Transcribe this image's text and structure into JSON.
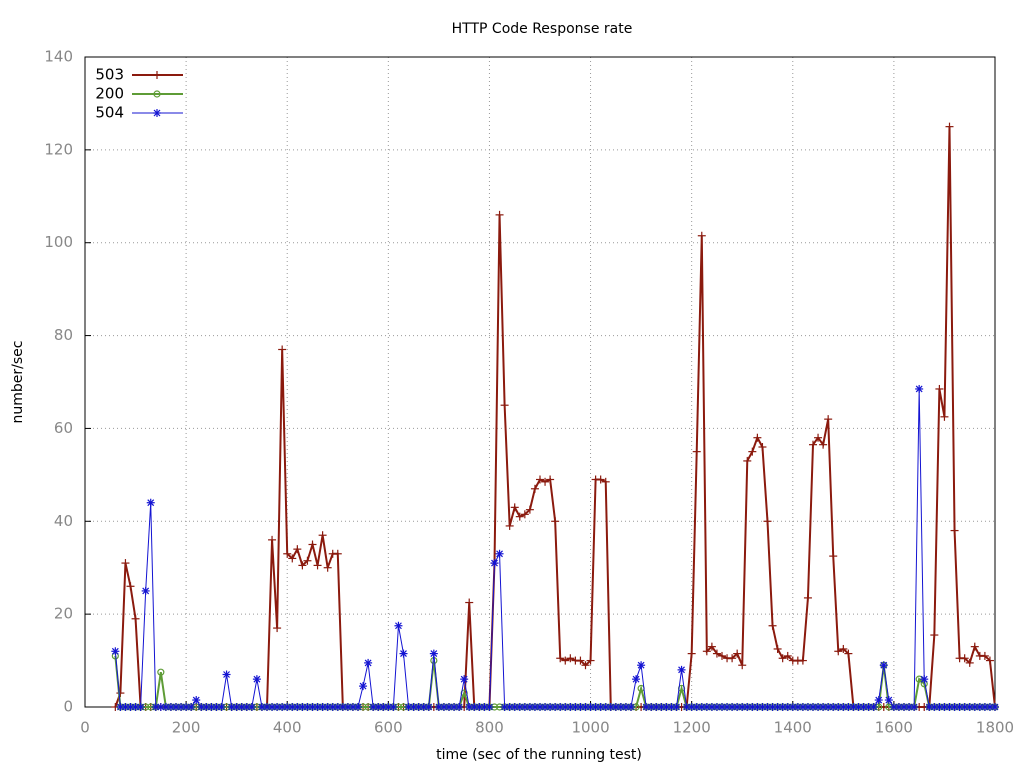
{
  "chart_data": {
    "type": "line",
    "title": "HTTP Code Response rate",
    "x_label": "time (sec of the running test)",
    "y_label": "number/sec",
    "xlim": [
      0,
      1800
    ],
    "xticks": [
      0,
      200,
      400,
      600,
      800,
      1000,
      1200,
      1400,
      1600,
      1800
    ],
    "ylim": [
      0,
      140
    ],
    "yticks": [
      0,
      20,
      40,
      60,
      80,
      100,
      120,
      140
    ],
    "grid": true,
    "legend": "top-left",
    "x": [
      60,
      70,
      80,
      90,
      100,
      110,
      120,
      130,
      140,
      150,
      160,
      170,
      180,
      190,
      200,
      210,
      220,
      230,
      240,
      250,
      260,
      270,
      280,
      290,
      300,
      310,
      320,
      330,
      340,
      350,
      360,
      370,
      380,
      390,
      400,
      410,
      420,
      430,
      440,
      450,
      460,
      470,
      480,
      490,
      500,
      510,
      520,
      530,
      540,
      550,
      560,
      570,
      580,
      590,
      600,
      610,
      620,
      630,
      640,
      650,
      660,
      670,
      680,
      690,
      700,
      710,
      720,
      730,
      740,
      750,
      760,
      770,
      780,
      790,
      800,
      810,
      820,
      830,
      840,
      850,
      860,
      870,
      880,
      890,
      900,
      910,
      920,
      930,
      940,
      950,
      960,
      970,
      980,
      990,
      1000,
      1010,
      1020,
      1030,
      1040,
      1050,
      1060,
      1070,
      1080,
      1090,
      1100,
      1110,
      1120,
      1130,
      1140,
      1150,
      1160,
      1170,
      1180,
      1190,
      1200,
      1210,
      1220,
      1230,
      1240,
      1250,
      1260,
      1270,
      1280,
      1290,
      1300,
      1310,
      1320,
      1330,
      1340,
      1350,
      1360,
      1370,
      1380,
      1390,
      1400,
      1410,
      1420,
      1430,
      1440,
      1450,
      1460,
      1470,
      1480,
      1490,
      1500,
      1510,
      1520,
      1530,
      1540,
      1550,
      1560,
      1570,
      1580,
      1590,
      1600,
      1610,
      1620,
      1630,
      1640,
      1650,
      1660,
      1670,
      1680,
      1690,
      1700,
      1710,
      1720,
      1730,
      1740,
      1750,
      1760,
      1770,
      1780,
      1790,
      1800
    ],
    "series": [
      {
        "name": "503",
        "color": "#8b1a0e",
        "marker": "plus",
        "values": [
          0,
          3,
          31,
          26,
          19,
          0,
          0,
          0,
          0,
          0,
          0,
          0,
          0,
          0,
          0,
          0,
          0,
          0,
          0,
          0,
          0,
          0,
          0,
          0,
          0,
          0,
          0,
          0,
          0,
          0,
          0,
          36,
          17,
          77,
          33,
          32,
          34,
          30.5,
          31.5,
          35,
          30.5,
          37,
          30,
          33,
          33,
          0,
          0,
          0,
          0,
          0,
          0,
          0,
          0,
          0,
          0,
          0,
          0,
          0,
          0,
          0,
          0,
          0,
          0,
          0,
          0,
          0,
          0,
          0,
          0,
          0,
          22.5,
          0,
          0,
          0,
          0,
          31,
          106,
          65,
          39,
          43,
          41,
          41.5,
          42.5,
          47,
          49,
          48.5,
          49,
          40,
          10.5,
          10,
          10.5,
          10,
          10,
          9,
          10,
          49,
          49,
          48.5,
          0,
          0,
          0,
          0,
          0,
          0,
          0,
          0,
          0,
          0,
          0,
          0,
          0,
          0,
          0,
          0,
          11.5,
          55,
          101.5,
          12,
          13,
          11.5,
          11,
          10.5,
          10.5,
          11.5,
          9,
          53,
          55,
          58,
          56,
          40,
          17.5,
          12.5,
          10.5,
          11,
          10,
          10,
          10,
          23.5,
          56.5,
          58,
          56.5,
          62,
          32.5,
          12,
          12.5,
          11.5,
          0,
          0,
          0,
          0,
          0,
          0,
          0,
          0,
          0,
          0,
          0,
          0,
          0,
          0,
          0,
          0,
          15.5,
          68.5,
          62.5,
          125,
          38,
          10.5,
          10.5,
          9.5,
          13,
          11,
          11,
          10,
          0
        ]
      },
      {
        "name": "200",
        "color": "#5e9c36",
        "marker": "circle",
        "values": [
          11,
          0,
          0,
          0,
          0,
          0,
          0,
          0,
          0,
          7.5,
          0,
          0,
          0,
          0,
          0,
          0,
          0,
          0,
          0,
          0,
          0,
          0,
          0,
          0,
          0,
          0,
          0,
          0,
          0,
          0,
          0,
          0,
          0,
          0,
          0,
          0,
          0,
          0,
          0,
          0,
          0,
          0,
          0,
          0,
          0,
          0,
          0,
          0,
          0,
          0,
          0,
          0,
          0,
          0,
          0,
          0,
          0,
          0,
          0,
          0,
          0,
          0,
          0,
          10,
          0,
          0,
          0,
          0,
          0,
          3,
          0,
          0,
          0,
          0,
          0,
          0,
          0,
          0,
          0,
          0,
          0,
          0,
          0,
          0,
          0,
          0,
          0,
          0,
          0,
          0,
          0,
          0,
          0,
          0,
          0,
          0,
          0,
          0,
          0,
          0,
          0,
          0,
          0,
          0,
          4,
          0,
          0,
          0,
          0,
          0,
          0,
          0,
          4,
          0,
          0,
          0,
          0,
          0,
          0,
          0,
          0,
          0,
          0,
          0,
          0,
          0,
          0,
          0,
          0,
          0,
          0,
          0,
          0,
          0,
          0,
          0,
          0,
          0,
          0,
          0,
          0,
          0,
          0,
          0,
          0,
          0,
          0,
          0,
          0,
          0,
          0,
          0,
          9,
          0,
          0,
          0,
          0,
          0,
          0,
          6,
          5,
          0,
          0,
          0,
          0,
          0,
          0,
          0,
          0,
          0,
          0,
          0,
          0,
          0,
          0
        ]
      },
      {
        "name": "504",
        "color": "#1414d2",
        "marker": "star",
        "values": [
          12,
          0,
          0,
          0,
          0,
          0,
          25,
          44,
          0,
          0,
          0,
          0,
          0,
          0,
          0,
          0,
          1.5,
          0,
          0,
          0,
          0,
          0,
          7,
          0,
          0,
          0,
          0,
          0,
          6,
          0,
          0,
          0,
          0,
          0,
          0,
          0,
          0,
          0,
          0,
          0,
          0,
          0,
          0,
          0,
          0,
          0,
          0,
          0,
          0,
          4.5,
          9.5,
          0,
          0,
          0,
          0,
          0,
          17.5,
          11.5,
          0,
          0,
          0,
          0,
          0,
          11.5,
          0,
          0,
          0,
          0,
          0,
          6,
          0,
          0,
          0,
          0,
          0,
          31,
          33,
          0,
          0,
          0,
          0,
          0,
          0,
          0,
          0,
          0,
          0,
          0,
          0,
          0,
          0,
          0,
          0,
          0,
          0,
          0,
          0,
          0,
          0,
          0,
          0,
          0,
          0,
          6,
          9,
          0,
          0,
          0,
          0,
          0,
          0,
          0,
          8,
          0,
          0,
          0,
          0,
          0,
          0,
          0,
          0,
          0,
          0,
          0,
          0,
          0,
          0,
          0,
          0,
          0,
          0,
          0,
          0,
          0,
          0,
          0,
          0,
          0,
          0,
          0,
          0,
          0,
          0,
          0,
          0,
          0,
          0,
          0,
          0,
          0,
          0,
          1.5,
          9,
          1.5,
          0,
          0,
          0,
          0,
          0,
          68.5,
          6,
          0,
          0,
          0,
          0,
          0,
          0,
          0,
          0,
          0,
          0,
          0,
          0,
          0,
          0
        ]
      }
    ]
  }
}
